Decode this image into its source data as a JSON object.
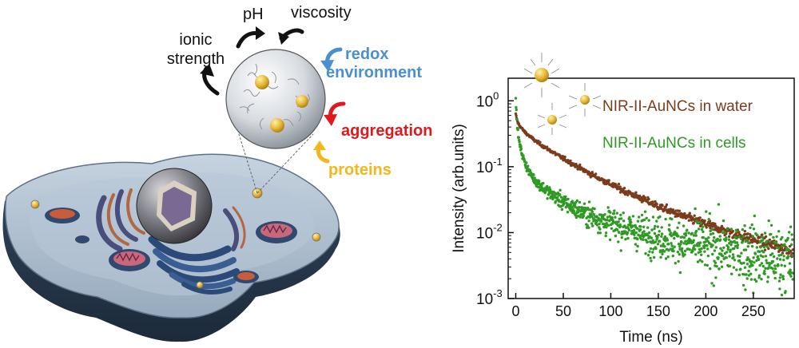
{
  "left_panel": {
    "factors": {
      "ionic_line1": "ionic",
      "ionic_line2": "strength",
      "ph": "pH",
      "viscosity": "viscosity",
      "redox_line1": "redox",
      "redox_line2": "environment",
      "aggregation": "aggregation",
      "proteins": "proteins"
    },
    "colors": {
      "black": "#111111",
      "redox": "#4a8fd2",
      "aggregation": "#e0191f",
      "proteins": "#f1b71b",
      "cell": "#a9bccf",
      "mitochondria": "#c95c3a",
      "nanocluster": "#e5b532"
    }
  },
  "chart_data": {
    "type": "scatter",
    "xlabel": "Time (ns)",
    "ylabel": "Intensity (arb.units)",
    "x_ticks": [
      0,
      50,
      100,
      150,
      200,
      250
    ],
    "y_ticks": [
      0.001,
      0.01,
      0.1,
      1
    ],
    "y_tick_labels": [
      {
        "base": "10",
        "exp": "-3"
      },
      {
        "base": "10",
        "exp": "-2"
      },
      {
        "base": "10",
        "exp": "-1"
      },
      {
        "base": "10",
        "exp": "0"
      }
    ],
    "xlim": [
      -8,
      293
    ],
    "ylim": [
      0.001,
      2.2
    ],
    "y_scale": "log",
    "series": [
      {
        "name": "NIR-II-AuNCs in water",
        "color": "#7b3c1c",
        "samples": [
          [
            0,
            0.62
          ],
          [
            2,
            0.47
          ],
          [
            5,
            0.4
          ],
          [
            10,
            0.33
          ],
          [
            20,
            0.25
          ],
          [
            30,
            0.2
          ],
          [
            40,
            0.163
          ],
          [
            50,
            0.133
          ],
          [
            60,
            0.11
          ],
          [
            75,
            0.083
          ],
          [
            90,
            0.064
          ],
          [
            110,
            0.046
          ],
          [
            130,
            0.034
          ],
          [
            150,
            0.025
          ],
          [
            175,
            0.018
          ],
          [
            200,
            0.0135
          ],
          [
            225,
            0.0102
          ],
          [
            250,
            0.0079
          ],
          [
            270,
            0.0065
          ],
          [
            292,
            0.0052
          ]
        ]
      },
      {
        "name": "NIR-II-AuNCs in cells",
        "color": "#2e9a24",
        "samples": [
          [
            0,
            1.0
          ],
          [
            1,
            0.55
          ],
          [
            2,
            0.35
          ],
          [
            4,
            0.22
          ],
          [
            7,
            0.15
          ],
          [
            10,
            0.11
          ],
          [
            15,
            0.08
          ],
          [
            20,
            0.063
          ],
          [
            30,
            0.046
          ],
          [
            40,
            0.036
          ],
          [
            50,
            0.029
          ],
          [
            60,
            0.024
          ],
          [
            75,
            0.019
          ],
          [
            90,
            0.0155
          ],
          [
            110,
            0.0125
          ],
          [
            130,
            0.0103
          ],
          [
            150,
            0.0087
          ],
          [
            175,
            0.0072
          ],
          [
            200,
            0.0061
          ],
          [
            230,
            0.0051
          ],
          [
            260,
            0.0043
          ],
          [
            292,
            0.0037
          ]
        ]
      }
    ]
  }
}
